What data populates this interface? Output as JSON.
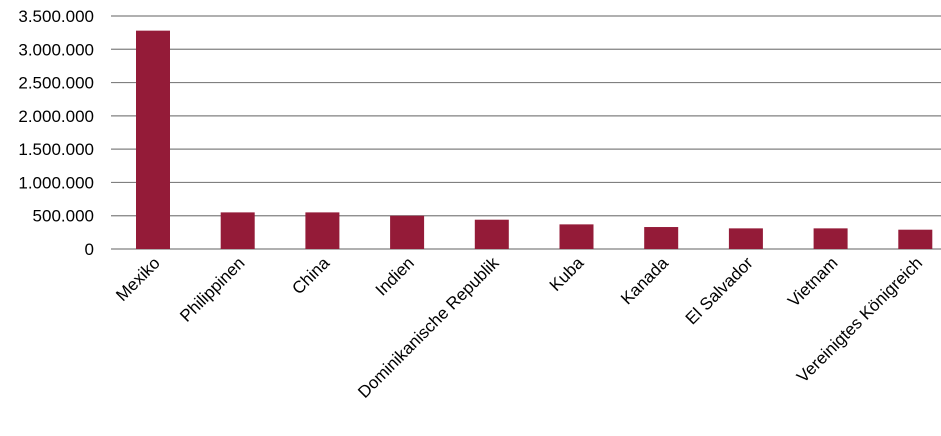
{
  "chart_data": {
    "type": "bar",
    "categories": [
      "Mexiko",
      "Philippinen",
      "China",
      "Indien",
      "Dominikanische Republik",
      "Kuba",
      "Kanada",
      "El Salvador",
      "Vietnam",
      "Vereinigtes Königreich"
    ],
    "values": [
      3280000,
      550000,
      550000,
      500000,
      440000,
      370000,
      330000,
      310000,
      310000,
      290000
    ],
    "ylim": [
      0,
      3500000
    ],
    "yticks": [
      0,
      500000,
      1000000,
      1500000,
      2000000,
      2500000,
      3000000,
      3500000
    ],
    "ytick_labels": [
      "0",
      "500.000",
      "1.000.000",
      "1.500.000",
      "2.000.000",
      "2.500.000",
      "3.000.000",
      "3.500.000"
    ],
    "grid": true,
    "bar_color": "#941B38",
    "title": "",
    "xlabel": "",
    "ylabel": ""
  }
}
